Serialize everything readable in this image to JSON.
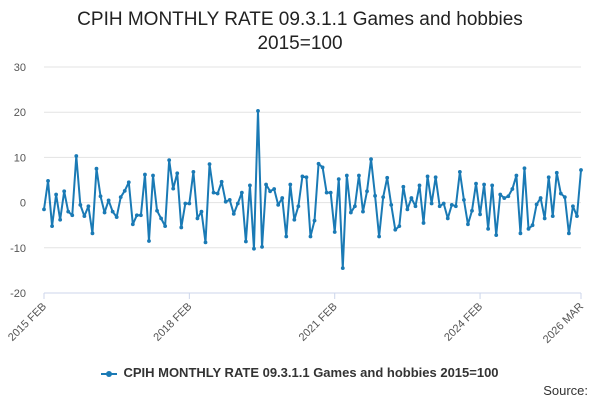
{
  "chart_data": {
    "type": "line",
    "title_line1": "CPIH MONTHLY RATE 09.3.1.1 Games and hobbies",
    "title_line2": "2015=100",
    "xlabel": "",
    "ylabel": "",
    "ylim": [
      -20,
      30
    ],
    "y_ticks": [
      "30",
      "20",
      "10",
      "0",
      "-10",
      "-20"
    ],
    "y_tick_values": [
      30,
      20,
      10,
      0,
      -10,
      -20
    ],
    "x_ticks": [
      {
        "label": "2015 FEB",
        "index": 0
      },
      {
        "label": "2018 FEB",
        "index": 36
      },
      {
        "label": "2021 FEB",
        "index": 72
      },
      {
        "label": "2024 FEB",
        "index": 108
      },
      {
        "label": "2026 MAR",
        "index": 133
      }
    ],
    "grid": true,
    "series": [
      {
        "name": "CPIH MONTHLY RATE 09.3.1.1 Games and hobbies 2015=100",
        "color": "#1A7AB5",
        "values": [
          -1.5,
          4.8,
          -5.2,
          1.8,
          -3.8,
          2.5,
          -2.0,
          -2.8,
          10.3,
          -0.5,
          -3.0,
          -0.8,
          -6.8,
          7.5,
          1.4,
          -2.2,
          0.5,
          -2.0,
          -3.2,
          1.2,
          2.6,
          4.5,
          -4.8,
          -2.8,
          -2.8,
          6.2,
          -8.5,
          6.0,
          -1.8,
          -3.5,
          -5.2,
          9.4,
          3.1,
          6.5,
          -5.5,
          -0.2,
          -0.2,
          6.8,
          -3.5,
          -2.0,
          -8.8,
          8.5,
          2.2,
          2.0,
          4.6,
          0.2,
          0.6,
          -2.5,
          -0.2,
          2.2,
          -8.6,
          3.8,
          -10.2,
          20.3,
          -9.8,
          4.0,
          2.5,
          3.0,
          -0.5,
          1.0,
          -7.5,
          4.0,
          -3.8,
          -0.8,
          5.8,
          5.6,
          -7.5,
          -4.0,
          8.6,
          7.8,
          2.2,
          2.2,
          -6.5,
          5.2,
          -14.5,
          6.0,
          -2.2,
          -0.8,
          6.0,
          -2.0,
          2.5,
          9.6,
          1.5,
          -7.5,
          1.2,
          5.5,
          -0.5,
          -6.0,
          -5.2,
          3.5,
          -1.5,
          1.0,
          -0.8,
          3.8,
          -4.5,
          5.8,
          -0.2,
          5.6,
          -0.8,
          -0.2,
          -3.5,
          -0.5,
          -0.8,
          6.8,
          0.6,
          -4.8,
          -1.8,
          4.2,
          -2.6,
          4.0,
          -5.8,
          3.8,
          -7.2,
          1.8,
          1.0,
          1.4,
          3.0,
          6.0,
          -6.8,
          7.6,
          -5.8,
          -5.0,
          -0.4,
          1.0,
          -3.5,
          5.6,
          -3.0,
          6.6,
          2.0,
          1.2,
          -6.8,
          -0.8,
          -3.0,
          7.2
        ]
      }
    ],
    "legend_position": "bottom",
    "source_label": "Source:"
  }
}
